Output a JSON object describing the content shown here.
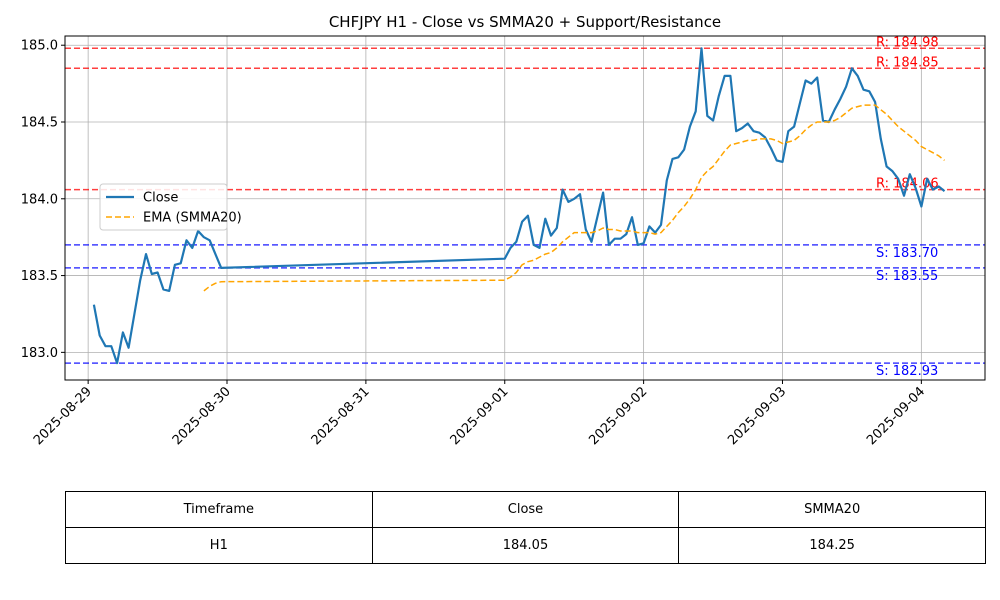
{
  "chart_data": {
    "type": "line",
    "title": "CHFJPY H1 - Close vs SMMA20 + Support/Resistance",
    "xlabel": "",
    "ylabel": "",
    "x_range": [
      "2025-08-28T20:00",
      "2025-09-04T11:00"
    ],
    "ylim": [
      182.82,
      185.06
    ],
    "x_ticks": [
      "2025-08-29",
      "2025-08-30",
      "2025-08-31",
      "2025-09-01",
      "2025-09-02",
      "2025-09-03",
      "2025-09-04"
    ],
    "y_ticks": [
      183.0,
      183.5,
      184.0,
      184.5,
      185.0
    ],
    "grid": true,
    "legend_position": "center-left",
    "series": [
      {
        "name": "Close",
        "style": "solid",
        "color": "#1f77b4",
        "points": [
          [
            "2025-08-29T01:00",
            183.31
          ],
          [
            "2025-08-29T02:00",
            183.11
          ],
          [
            "2025-08-29T03:00",
            183.04
          ],
          [
            "2025-08-29T04:00",
            183.04
          ],
          [
            "2025-08-29T05:00",
            182.93
          ],
          [
            "2025-08-29T06:00",
            183.13
          ],
          [
            "2025-08-29T07:00",
            183.03
          ],
          [
            "2025-08-29T08:00",
            183.25
          ],
          [
            "2025-08-29T09:00",
            183.47
          ],
          [
            "2025-08-29T10:00",
            183.64
          ],
          [
            "2025-08-29T11:00",
            183.51
          ],
          [
            "2025-08-29T12:00",
            183.52
          ],
          [
            "2025-08-29T13:00",
            183.41
          ],
          [
            "2025-08-29T14:00",
            183.4
          ],
          [
            "2025-08-29T15:00",
            183.57
          ],
          [
            "2025-08-29T16:00",
            183.58
          ],
          [
            "2025-08-29T17:00",
            183.73
          ],
          [
            "2025-08-29T18:00",
            183.68
          ],
          [
            "2025-08-29T19:00",
            183.79
          ],
          [
            "2025-08-29T20:00",
            183.75
          ],
          [
            "2025-08-29T21:00",
            183.73
          ],
          [
            "2025-08-29T22:00",
            183.64
          ],
          [
            "2025-08-29T23:00",
            183.55
          ],
          [
            "2025-09-01T00:00",
            183.61
          ],
          [
            "2025-09-01T01:00",
            183.68
          ],
          [
            "2025-09-01T02:00",
            183.72
          ],
          [
            "2025-09-01T03:00",
            183.85
          ],
          [
            "2025-09-01T04:00",
            183.89
          ],
          [
            "2025-09-01T05:00",
            183.7
          ],
          [
            "2025-09-01T06:00",
            183.68
          ],
          [
            "2025-09-01T07:00",
            183.87
          ],
          [
            "2025-09-01T08:00",
            183.76
          ],
          [
            "2025-09-01T09:00",
            183.81
          ],
          [
            "2025-09-01T10:00",
            184.06
          ],
          [
            "2025-09-01T11:00",
            183.98
          ],
          [
            "2025-09-01T12:00",
            184.0
          ],
          [
            "2025-09-01T13:00",
            184.03
          ],
          [
            "2025-09-01T14:00",
            183.8
          ],
          [
            "2025-09-01T15:00",
            183.72
          ],
          [
            "2025-09-01T16:00",
            183.88
          ],
          [
            "2025-09-01T17:00",
            184.04
          ],
          [
            "2025-09-01T18:00",
            183.7
          ],
          [
            "2025-09-01T19:00",
            183.74
          ],
          [
            "2025-09-01T20:00",
            183.74
          ],
          [
            "2025-09-01T21:00",
            183.77
          ],
          [
            "2025-09-01T22:00",
            183.88
          ],
          [
            "2025-09-01T23:00",
            183.7
          ],
          [
            "2025-09-02T00:00",
            183.71
          ],
          [
            "2025-09-02T01:00",
            183.82
          ],
          [
            "2025-09-02T02:00",
            183.78
          ],
          [
            "2025-09-02T03:00",
            183.83
          ],
          [
            "2025-09-02T04:00",
            184.12
          ],
          [
            "2025-09-02T05:00",
            184.26
          ],
          [
            "2025-09-02T06:00",
            184.27
          ],
          [
            "2025-09-02T07:00",
            184.32
          ],
          [
            "2025-09-02T08:00",
            184.47
          ],
          [
            "2025-09-02T09:00",
            184.57
          ],
          [
            "2025-09-02T10:00",
            184.98
          ],
          [
            "2025-09-02T11:00",
            184.54
          ],
          [
            "2025-09-02T12:00",
            184.51
          ],
          [
            "2025-09-02T13:00",
            184.67
          ],
          [
            "2025-09-02T14:00",
            184.8
          ],
          [
            "2025-09-02T15:00",
            184.8
          ],
          [
            "2025-09-02T16:00",
            184.44
          ],
          [
            "2025-09-02T17:00",
            184.46
          ],
          [
            "2025-09-02T18:00",
            184.49
          ],
          [
            "2025-09-02T19:00",
            184.44
          ],
          [
            "2025-09-02T20:00",
            184.43
          ],
          [
            "2025-09-02T21:00",
            184.4
          ],
          [
            "2025-09-02T22:00",
            184.33
          ],
          [
            "2025-09-02T23:00",
            184.25
          ],
          [
            "2025-09-03T00:00",
            184.24
          ],
          [
            "2025-09-03T01:00",
            184.44
          ],
          [
            "2025-09-03T02:00",
            184.47
          ],
          [
            "2025-09-03T03:00",
            184.62
          ],
          [
            "2025-09-03T04:00",
            184.77
          ],
          [
            "2025-09-03T05:00",
            184.75
          ],
          [
            "2025-09-03T06:00",
            184.79
          ],
          [
            "2025-09-03T07:00",
            184.51
          ],
          [
            "2025-09-03T08:00",
            184.5
          ],
          [
            "2025-09-03T09:00",
            184.58
          ],
          [
            "2025-09-03T10:00",
            184.65
          ],
          [
            "2025-09-03T11:00",
            184.73
          ],
          [
            "2025-09-03T12:00",
            184.85
          ],
          [
            "2025-09-03T13:00",
            184.8
          ],
          [
            "2025-09-03T14:00",
            184.71
          ],
          [
            "2025-09-03T15:00",
            184.7
          ],
          [
            "2025-09-03T16:00",
            184.63
          ],
          [
            "2025-09-03T17:00",
            184.39
          ],
          [
            "2025-09-03T18:00",
            184.21
          ],
          [
            "2025-09-03T19:00",
            184.18
          ],
          [
            "2025-09-03T20:00",
            184.13
          ],
          [
            "2025-09-03T21:00",
            184.02
          ],
          [
            "2025-09-03T22:00",
            184.16
          ],
          [
            "2025-09-03T23:00",
            184.07
          ],
          [
            "2025-09-04T00:00",
            183.95
          ],
          [
            "2025-09-04T01:00",
            184.13
          ],
          [
            "2025-09-04T02:00",
            184.06
          ],
          [
            "2025-09-04T03:00",
            184.08
          ],
          [
            "2025-09-04T04:00",
            184.05
          ]
        ]
      },
      {
        "name": "EMA (SMMA20)",
        "style": "dashed",
        "color": "#ffa500",
        "points": [
          [
            "2025-08-29T20:00",
            183.4
          ],
          [
            "2025-08-29T21:00",
            183.43
          ],
          [
            "2025-08-29T22:00",
            183.45
          ],
          [
            "2025-08-29T23:00",
            183.46
          ],
          [
            "2025-09-01T00:00",
            183.47
          ],
          [
            "2025-09-01T01:00",
            183.49
          ],
          [
            "2025-09-01T02:00",
            183.52
          ],
          [
            "2025-09-01T03:00",
            183.57
          ],
          [
            "2025-09-01T04:00",
            183.59
          ],
          [
            "2025-09-01T05:00",
            183.6
          ],
          [
            "2025-09-01T06:00",
            183.62
          ],
          [
            "2025-09-01T07:00",
            183.64
          ],
          [
            "2025-09-01T08:00",
            183.65
          ],
          [
            "2025-09-01T09:00",
            183.68
          ],
          [
            "2025-09-01T10:00",
            183.72
          ],
          [
            "2025-09-01T11:00",
            183.75
          ],
          [
            "2025-09-01T12:00",
            183.78
          ],
          [
            "2025-09-01T13:00",
            183.78
          ],
          [
            "2025-09-01T14:00",
            183.78
          ],
          [
            "2025-09-01T15:00",
            183.78
          ],
          [
            "2025-09-01T16:00",
            183.79
          ],
          [
            "2025-09-01T17:00",
            183.81
          ],
          [
            "2025-09-01T18:00",
            183.8
          ],
          [
            "2025-09-01T19:00",
            183.8
          ],
          [
            "2025-09-01T20:00",
            183.79
          ],
          [
            "2025-09-01T21:00",
            183.79
          ],
          [
            "2025-09-01T22:00",
            183.79
          ],
          [
            "2025-09-01T23:00",
            183.78
          ],
          [
            "2025-09-02T00:00",
            183.78
          ],
          [
            "2025-09-02T01:00",
            183.78
          ],
          [
            "2025-09-02T02:00",
            183.77
          ],
          [
            "2025-09-02T03:00",
            183.78
          ],
          [
            "2025-09-02T04:00",
            183.82
          ],
          [
            "2025-09-02T05:00",
            183.86
          ],
          [
            "2025-09-02T06:00",
            183.91
          ],
          [
            "2025-09-02T07:00",
            183.95
          ],
          [
            "2025-09-02T08:00",
            184.0
          ],
          [
            "2025-09-02T09:00",
            184.06
          ],
          [
            "2025-09-02T10:00",
            184.14
          ],
          [
            "2025-09-02T11:00",
            184.18
          ],
          [
            "2025-09-02T12:00",
            184.21
          ],
          [
            "2025-09-02T13:00",
            184.26
          ],
          [
            "2025-09-02T14:00",
            184.31
          ],
          [
            "2025-09-02T15:00",
            184.35
          ],
          [
            "2025-09-02T16:00",
            184.36
          ],
          [
            "2025-09-02T17:00",
            184.37
          ],
          [
            "2025-09-02T18:00",
            184.38
          ],
          [
            "2025-09-02T19:00",
            184.38
          ],
          [
            "2025-09-02T20:00",
            184.39
          ],
          [
            "2025-09-02T21:00",
            184.39
          ],
          [
            "2025-09-02T22:00",
            184.39
          ],
          [
            "2025-09-02T23:00",
            184.38
          ],
          [
            "2025-09-03T00:00",
            184.36
          ],
          [
            "2025-09-03T01:00",
            184.37
          ],
          [
            "2025-09-03T02:00",
            184.38
          ],
          [
            "2025-09-03T03:00",
            184.41
          ],
          [
            "2025-09-03T04:00",
            184.45
          ],
          [
            "2025-09-03T05:00",
            184.48
          ],
          [
            "2025-09-03T06:00",
            184.5
          ],
          [
            "2025-09-03T07:00",
            184.5
          ],
          [
            "2025-09-03T08:00",
            184.5
          ],
          [
            "2025-09-03T09:00",
            184.51
          ],
          [
            "2025-09-03T10:00",
            184.53
          ],
          [
            "2025-09-03T11:00",
            184.56
          ],
          [
            "2025-09-03T12:00",
            184.59
          ],
          [
            "2025-09-03T13:00",
            184.6
          ],
          [
            "2025-09-03T14:00",
            184.61
          ],
          [
            "2025-09-03T15:00",
            184.61
          ],
          [
            "2025-09-03T16:00",
            184.61
          ],
          [
            "2025-09-03T17:00",
            184.58
          ],
          [
            "2025-09-03T18:00",
            184.55
          ],
          [
            "2025-09-03T19:00",
            184.51
          ],
          [
            "2025-09-03T20:00",
            184.47
          ],
          [
            "2025-09-03T21:00",
            184.44
          ],
          [
            "2025-09-03T22:00",
            184.41
          ],
          [
            "2025-09-03T23:00",
            184.38
          ],
          [
            "2025-09-04T00:00",
            184.34
          ],
          [
            "2025-09-04T01:00",
            184.32
          ],
          [
            "2025-09-04T02:00",
            184.3
          ],
          [
            "2025-09-04T03:00",
            184.28
          ],
          [
            "2025-09-04T04:00",
            184.25
          ]
        ]
      }
    ],
    "levels": [
      {
        "kind": "resistance",
        "value": 184.98,
        "label": "R: 184.98",
        "color": "#ff0000"
      },
      {
        "kind": "resistance",
        "value": 184.85,
        "label": "R: 184.85",
        "color": "#ff0000"
      },
      {
        "kind": "resistance",
        "value": 184.06,
        "label": "R: 184.06",
        "color": "#ff0000"
      },
      {
        "kind": "support",
        "value": 183.7,
        "label": "S: 183.70",
        "color": "#0000ff"
      },
      {
        "kind": "support",
        "value": 183.55,
        "label": "S: 183.55",
        "color": "#0000ff"
      },
      {
        "kind": "support",
        "value": 182.93,
        "label": "S: 182.93",
        "color": "#0000ff"
      }
    ]
  },
  "table": {
    "headers": [
      "Timeframe",
      "Close",
      "SMMA20"
    ],
    "rows": [
      [
        "H1",
        "184.05",
        "184.25"
      ]
    ]
  }
}
